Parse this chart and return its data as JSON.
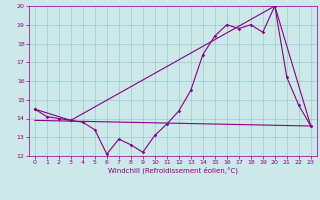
{
  "xlabel": "Windchill (Refroidissement éolien,°C)",
  "xlim": [
    -0.5,
    23.5
  ],
  "ylim": [
    12,
    20
  ],
  "yticks": [
    12,
    13,
    14,
    15,
    16,
    17,
    18,
    19,
    20
  ],
  "xticks": [
    0,
    1,
    2,
    3,
    4,
    5,
    6,
    7,
    8,
    9,
    10,
    11,
    12,
    13,
    14,
    15,
    16,
    17,
    18,
    19,
    20,
    21,
    22,
    23
  ],
  "bg_color": "#cce8e8",
  "line_color": "#880088",
  "grid_color": "#99cccc",
  "line1_x": [
    0,
    1,
    2,
    3,
    4,
    5,
    6,
    7,
    8,
    9,
    10,
    11,
    12,
    13,
    14,
    15,
    16,
    17,
    18,
    19,
    20,
    21,
    22,
    23
  ],
  "line1_y": [
    14.5,
    14.1,
    14.0,
    13.9,
    13.8,
    13.4,
    12.1,
    12.9,
    12.6,
    12.2,
    13.1,
    13.7,
    14.4,
    15.5,
    17.4,
    18.4,
    19.0,
    18.8,
    19.0,
    18.6,
    20.0,
    16.2,
    14.7,
    13.6
  ],
  "line2_x": [
    0,
    3,
    20,
    23
  ],
  "line2_y": [
    14.5,
    13.9,
    20.0,
    13.6
  ],
  "line3_x": [
    0,
    23
  ],
  "line3_y": [
    13.9,
    13.6
  ]
}
